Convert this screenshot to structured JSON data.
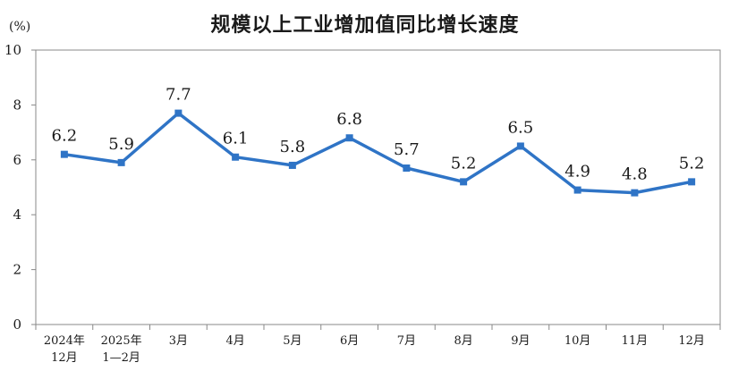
{
  "chart_data": {
    "type": "line",
    "title": "规模以上工业增加值同比增长速度",
    "ylabel": "(%)",
    "xlabel": "",
    "ylim": [
      0,
      10
    ],
    "yticks": [
      0,
      2,
      4,
      6,
      8,
      10
    ],
    "grid": false,
    "legend": "none",
    "categories": [
      [
        "2024年",
        "12月"
      ],
      [
        "2025年",
        "1—2月"
      ],
      [
        "3月"
      ],
      [
        "4月"
      ],
      [
        "5月"
      ],
      [
        "6月"
      ],
      [
        "7月"
      ],
      [
        "8月"
      ],
      [
        "9月"
      ],
      [
        "10月"
      ],
      [
        "11月"
      ],
      [
        "12月"
      ]
    ],
    "series": [
      {
        "values": [
          6.2,
          5.9,
          7.7,
          6.1,
          5.8,
          6.8,
          5.7,
          5.2,
          6.5,
          4.9,
          4.8,
          5.2
        ]
      }
    ],
    "data_labels": [
      "6.2",
      "5.9",
      "7.7",
      "6.1",
      "5.8",
      "6.8",
      "5.7",
      "5.2",
      "6.5",
      "4.9",
      "4.8",
      "5.2"
    ],
    "line_color": "#2f74c6"
  }
}
